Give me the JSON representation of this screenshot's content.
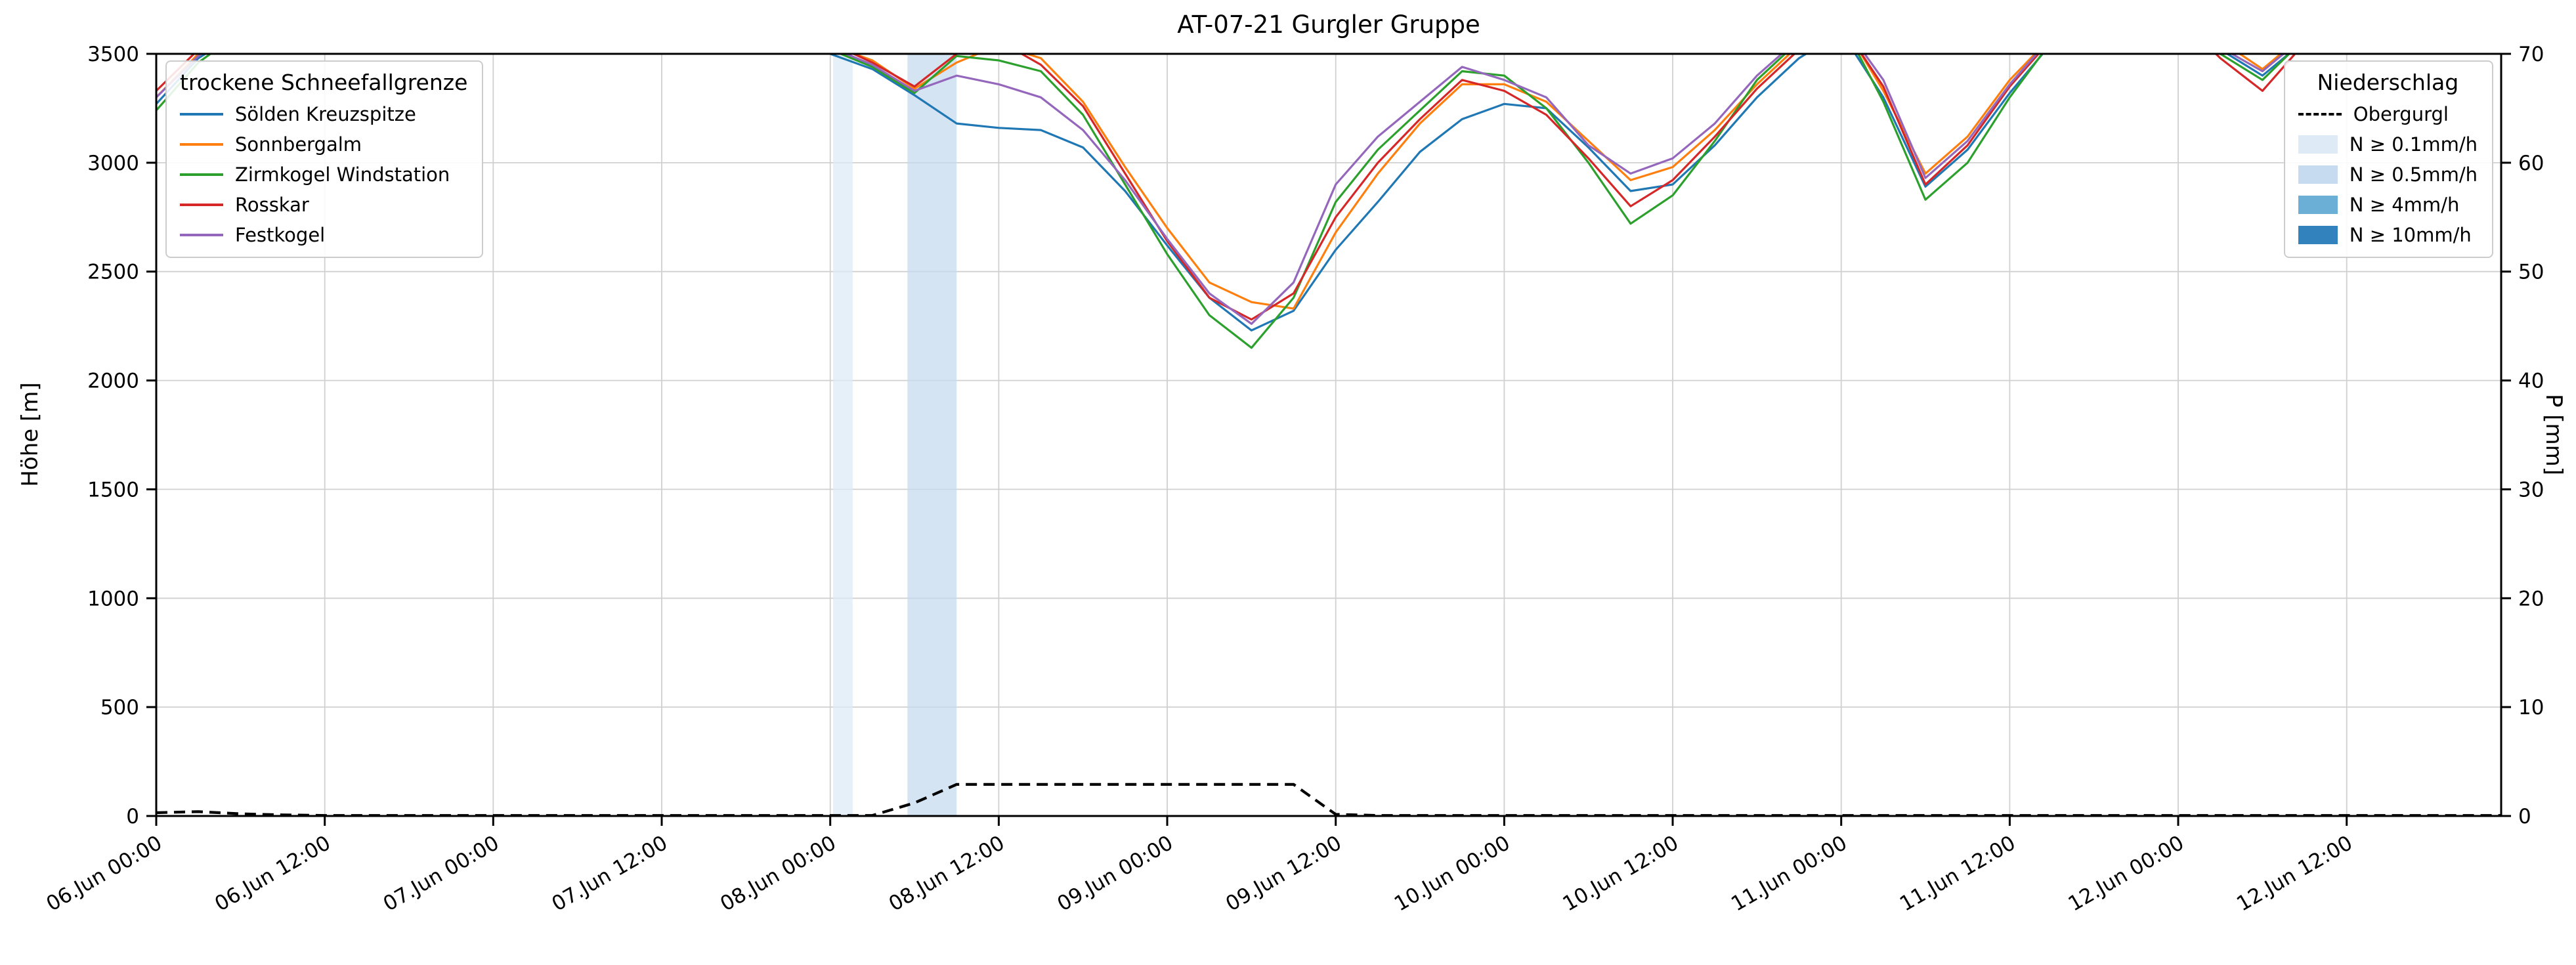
{
  "title": "AT-07-21 Gurgler Gruppe",
  "chart_data": {
    "type": "line",
    "title": "AT-07-21 Gurgler Gruppe",
    "note": "series values above 3500 m run off-scale (clipped at top of axes)",
    "x_axis": {
      "unit": "hours since 06.Jun 00:00",
      "range": [
        0,
        167
      ],
      "tick_step_hours": 12,
      "tick_labels": [
        "06.Jun 00:00",
        "06.Jun 12:00",
        "07.Jun 00:00",
        "07.Jun 12:00",
        "08.Jun 00:00",
        "08.Jun 12:00",
        "09.Jun 00:00",
        "09.Jun 12:00",
        "10.Jun 00:00",
        "10.Jun 12:00",
        "11.Jun 00:00",
        "11.Jun 12:00",
        "12.Jun 00:00",
        "12.Jun 12:00"
      ]
    },
    "y_left": {
      "label": "Höhe [m]",
      "range": [
        0,
        3500
      ],
      "ticks": [
        0,
        500,
        1000,
        1500,
        2000,
        2500,
        3000,
        3500
      ]
    },
    "y_right": {
      "label": "P [mm]",
      "range": [
        0,
        70
      ],
      "ticks": [
        0,
        10,
        20,
        30,
        40,
        50,
        60,
        70
      ]
    },
    "legend_left": {
      "title": "trockene Schneefallgrenze"
    },
    "legend_right": {
      "title": "Niederschlag"
    },
    "grid": true,
    "hours": [
      0,
      3,
      6,
      9,
      12,
      15,
      18,
      21,
      24,
      27,
      30,
      33,
      36,
      39,
      42,
      45,
      48,
      51,
      54,
      57,
      60,
      63,
      66,
      69,
      72,
      75,
      78,
      81,
      84,
      87,
      90,
      93,
      96,
      99,
      102,
      105,
      108,
      111,
      114,
      117,
      120,
      123,
      126,
      129,
      132,
      135,
      138,
      141,
      144,
      147,
      150,
      153,
      156,
      159,
      162,
      165,
      168
    ],
    "series": [
      {
        "name": "Sölden Kreuzspitze",
        "color": "#1f77b4",
        "values": [
          3270,
          3480,
          3600,
          3650,
          3650,
          3650,
          3650,
          3650,
          3650,
          3650,
          3650,
          3650,
          3650,
          3650,
          3650,
          3600,
          3500,
          3430,
          3310,
          3180,
          3160,
          3150,
          3070,
          2870,
          2620,
          2380,
          2230,
          2320,
          2600,
          2820,
          3050,
          3200,
          3270,
          3250,
          3070,
          2870,
          2900,
          3080,
          3300,
          3480,
          3600,
          3300,
          2890,
          3060,
          3320,
          3550,
          3650,
          3650,
          3650,
          3520,
          3400,
          3560,
          3650,
          3650,
          3650,
          3650,
          3650
        ]
      },
      {
        "name": "Sonnbergalm",
        "color": "#ff7f0e",
        "values": [
          3300,
          3500,
          3620,
          3680,
          3680,
          3680,
          3680,
          3680,
          3680,
          3680,
          3680,
          3680,
          3680,
          3680,
          3680,
          3620,
          3540,
          3470,
          3340,
          3460,
          3540,
          3480,
          3280,
          2980,
          2700,
          2450,
          2360,
          2330,
          2680,
          2950,
          3180,
          3360,
          3360,
          3280,
          3100,
          2920,
          2980,
          3150,
          3360,
          3540,
          3650,
          3330,
          2950,
          3120,
          3380,
          3580,
          3680,
          3680,
          3680,
          3560,
          3430,
          3590,
          3680,
          3680,
          3680,
          3680,
          3680
        ]
      },
      {
        "name": "Zirmkogel Windstation",
        "color": "#2ca02c",
        "values": [
          3240,
          3460,
          3600,
          3670,
          3670,
          3670,
          3670,
          3670,
          3670,
          3670,
          3670,
          3670,
          3670,
          3670,
          3670,
          3610,
          3520,
          3440,
          3320,
          3490,
          3470,
          3420,
          3220,
          2900,
          2580,
          2300,
          2150,
          2380,
          2820,
          3060,
          3240,
          3420,
          3400,
          3250,
          3000,
          2720,
          2850,
          3100,
          3380,
          3560,
          3650,
          3280,
          2830,
          3000,
          3300,
          3560,
          3660,
          3660,
          3660,
          3500,
          3380,
          3570,
          3660,
          3660,
          3660,
          3660,
          3660
        ]
      },
      {
        "name": "Rosskar",
        "color": "#d62728",
        "values": [
          3330,
          3520,
          3630,
          3690,
          3690,
          3690,
          3690,
          3690,
          3690,
          3690,
          3690,
          3690,
          3690,
          3690,
          3690,
          3630,
          3550,
          3460,
          3350,
          3500,
          3560,
          3450,
          3260,
          2950,
          2640,
          2380,
          2280,
          2400,
          2750,
          3000,
          3200,
          3380,
          3330,
          3220,
          3020,
          2800,
          2920,
          3120,
          3340,
          3520,
          3640,
          3350,
          2900,
          3080,
          3350,
          3570,
          3670,
          3670,
          3670,
          3480,
          3330,
          3550,
          3670,
          3670,
          3670,
          3670,
          3670
        ]
      },
      {
        "name": "Festkogel",
        "color": "#9467bd",
        "values": [
          3300,
          3490,
          3610,
          3660,
          3660,
          3660,
          3660,
          3660,
          3660,
          3660,
          3660,
          3660,
          3660,
          3660,
          3660,
          3600,
          3530,
          3450,
          3330,
          3400,
          3360,
          3300,
          3150,
          2920,
          2650,
          2400,
          2260,
          2450,
          2900,
          3120,
          3280,
          3440,
          3380,
          3300,
          3080,
          2950,
          3020,
          3180,
          3400,
          3570,
          3650,
          3380,
          2930,
          3100,
          3360,
          3580,
          3660,
          3660,
          3660,
          3530,
          3420,
          3580,
          3660,
          3660,
          3660,
          3660,
          3660
        ]
      }
    ],
    "obergurgl": {
      "name": "Obergurgl",
      "color": "#000000",
      "style": "dashed",
      "values_mm": [
        0.3,
        0.4,
        0.2,
        0.1,
        0.05,
        0.05,
        0.05,
        0.05,
        0.05,
        0.05,
        0.05,
        0.05,
        0.05,
        0.05,
        0.05,
        0.05,
        0.05,
        0.05,
        1.2,
        2.9,
        2.9,
        2.9,
        2.9,
        2.9,
        2.9,
        2.9,
        2.9,
        2.9,
        0.15,
        0.05,
        0.05,
        0.05,
        0.05,
        0.05,
        0.05,
        0.05,
        0.05,
        0.05,
        0.05,
        0.05,
        0.05,
        0.05,
        0.05,
        0.05,
        0.05,
        0.05,
        0.05,
        0.05,
        0.05,
        0.05,
        0.05,
        0.05,
        0.05,
        0.05,
        0.05,
        0.05,
        0.05
      ]
    },
    "precip_levels": [
      {
        "label": "N ≥ 0.1mm/h",
        "color": "#deebf7"
      },
      {
        "label": "N ≥ 0.5mm/h",
        "color": "#c6dbef"
      },
      {
        "label": "N ≥ 4mm/h",
        "color": "#6baed6"
      },
      {
        "label": "N ≥ 10mm/h",
        "color": "#3182bd"
      }
    ],
    "precip_bands": [
      {
        "start_hour": 48.2,
        "end_hour": 49.6,
        "level": "N ≥ 0.1mm/h",
        "color": "#deebf7"
      },
      {
        "start_hour": 53.5,
        "end_hour": 57.0,
        "level": "N ≥ 0.5mm/h",
        "color": "#c6dbef"
      }
    ]
  }
}
